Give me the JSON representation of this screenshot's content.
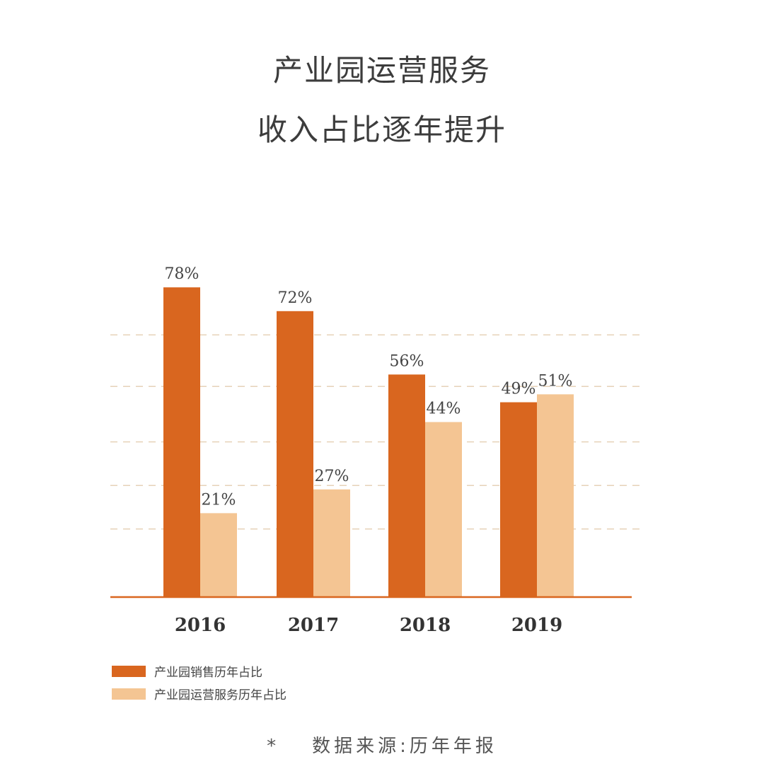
{
  "title": {
    "line1": "产业园运营服务",
    "line2": "收入占比逐年提升"
  },
  "colors": {
    "sales": "#d9661f",
    "service": "#f4c593",
    "grid": "#e6d2b8",
    "baseline": "#d9661f"
  },
  "chart_data": {
    "type": "bar",
    "categories": [
      "2016",
      "2017",
      "2018",
      "2019"
    ],
    "series": [
      {
        "name": "产业园销售历年占比",
        "values": [
          78,
          72,
          56,
          49
        ],
        "labels": [
          "78%",
          "72%",
          "56%",
          "49%"
        ]
      },
      {
        "name": "产业园运营服务历年占比",
        "values": [
          21,
          27,
          44,
          51
        ],
        "labels": [
          "21%",
          "27%",
          "44%",
          "51%"
        ]
      }
    ],
    "ylim": [
      0,
      100
    ],
    "grid": true,
    "legend": "bottom-left"
  },
  "source": {
    "star": "*",
    "text": "数据来源:历年年报"
  }
}
